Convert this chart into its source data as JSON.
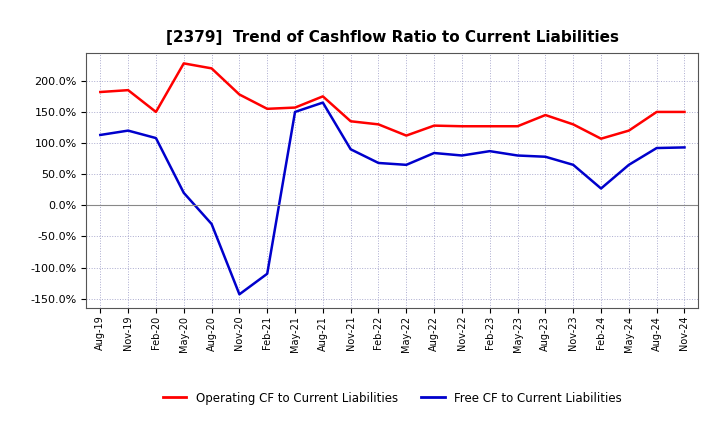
{
  "title": "[2379]  Trend of Cashflow Ratio to Current Liabilities",
  "x_labels": [
    "Aug-19",
    "Nov-19",
    "Feb-20",
    "May-20",
    "Aug-20",
    "Nov-20",
    "Feb-21",
    "May-21",
    "Aug-21",
    "Nov-21",
    "Feb-22",
    "May-22",
    "Aug-22",
    "Nov-22",
    "Feb-23",
    "May-23",
    "Aug-23",
    "Nov-23",
    "Feb-24",
    "May-24",
    "Aug-24",
    "Nov-24"
  ],
  "operating_cf": [
    182,
    185,
    150,
    228,
    220,
    178,
    155,
    157,
    175,
    135,
    130,
    112,
    128,
    127,
    127,
    127,
    145,
    130,
    107,
    120,
    150,
    150
  ],
  "free_cf": [
    113,
    120,
    108,
    20,
    -30,
    -143,
    -110,
    150,
    165,
    90,
    68,
    65,
    84,
    80,
    87,
    80,
    78,
    65,
    27,
    65,
    92,
    93
  ],
  "ylim": [
    -165,
    245
  ],
  "yticks": [
    -150,
    -100,
    -50,
    0,
    50,
    100,
    150,
    200
  ],
  "operating_color": "#ff0000",
  "free_color": "#0000cc",
  "background_color": "#ffffff",
  "grid_color": "#8888bb",
  "title_fontsize": 11,
  "legend_labels": [
    "Operating CF to Current Liabilities",
    "Free CF to Current Liabilities"
  ]
}
